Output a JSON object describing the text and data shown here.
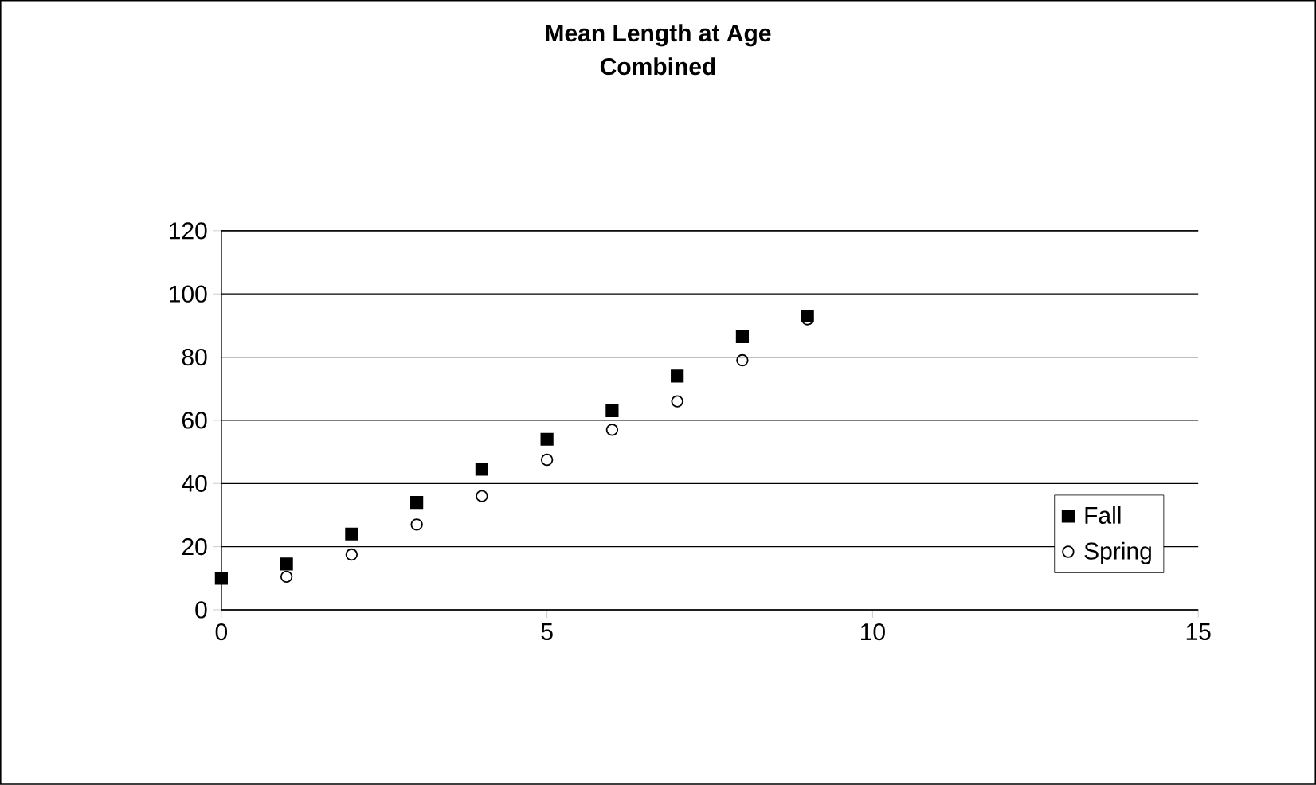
{
  "chart_data": {
    "type": "scatter",
    "title": "Mean Length at Age\nCombined",
    "series": [
      {
        "name": "Fall",
        "color": "#000000",
        "marker": "square",
        "x": [
          0,
          1,
          2,
          3,
          4,
          5,
          6,
          7,
          8,
          9
        ],
        "values": [
          10,
          14.5,
          24,
          34,
          44.5,
          54,
          63,
          74,
          86.5,
          93
        ]
      },
      {
        "name": "Spring",
        "color": "#000000",
        "marker": "circle",
        "x": [
          1,
          2,
          3,
          4,
          5,
          6,
          7,
          8,
          9
        ],
        "values": [
          10.5,
          17.5,
          27,
          36,
          47.5,
          57,
          66,
          79,
          92
        ]
      }
    ],
    "xlim": [
      0,
      15
    ],
    "xticks": [
      0,
      5,
      10,
      15
    ],
    "ylim": [
      0,
      120
    ],
    "yticks": [
      0,
      20,
      40,
      60,
      80,
      100,
      120
    ],
    "grid": "y",
    "legend": "bottom right"
  }
}
